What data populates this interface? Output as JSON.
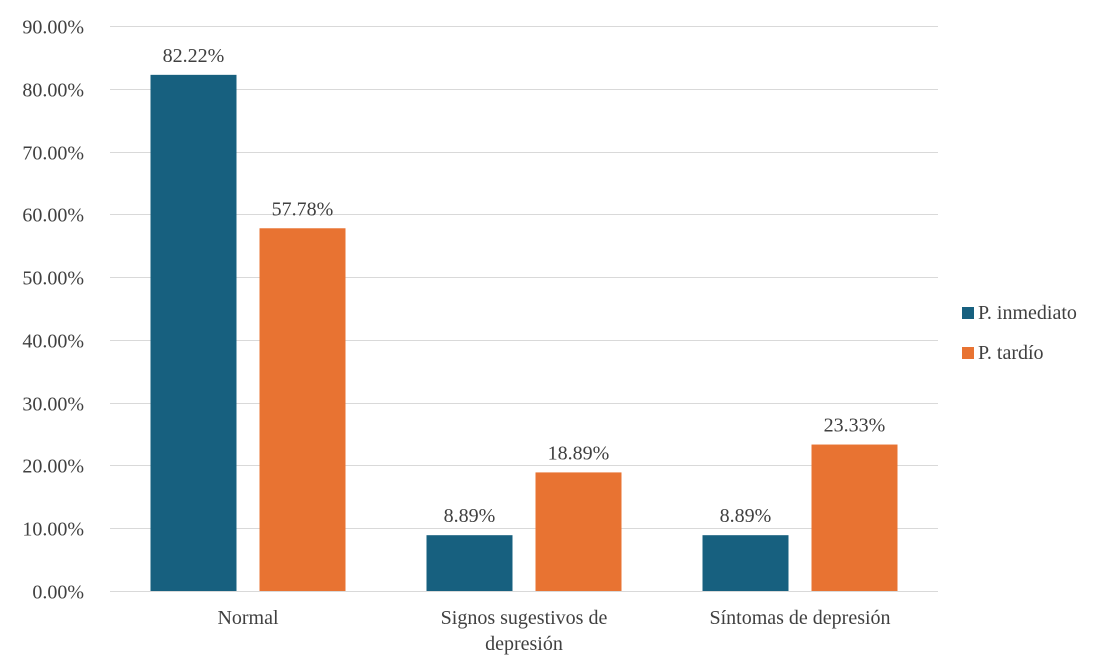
{
  "chart_data": {
    "type": "bar",
    "categories": [
      "Normal",
      "Signos sugestivos de depresión",
      "Síntomas de depresión"
    ],
    "series": [
      {
        "name": "P. inmediato",
        "values": [
          82.22,
          8.89,
          8.89
        ],
        "labels": [
          "82.22%",
          "8.89%",
          "8.89%"
        ],
        "color": "#17607f"
      },
      {
        "name": "P. tardío",
        "values": [
          57.78,
          18.89,
          23.33
        ],
        "labels": [
          "57.78%",
          "18.89%",
          "23.33%"
        ],
        "color": "#e87332"
      }
    ],
    "ylim": [
      0,
      90
    ],
    "yticks": [
      "0.00%",
      "10.00%",
      "20.00%",
      "30.00%",
      "40.00%",
      "50.00%",
      "60.00%",
      "70.00%",
      "80.00%",
      "90.00%"
    ],
    "grid": true,
    "legend_position": "right"
  }
}
